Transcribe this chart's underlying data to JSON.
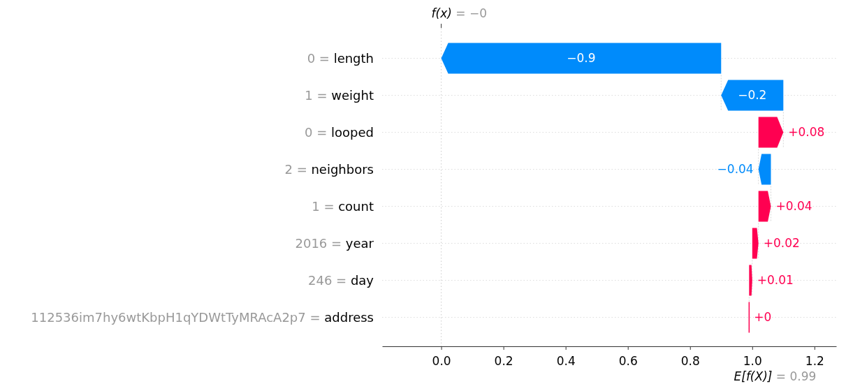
{
  "chart_data": {
    "type": "bar",
    "orientation": "horizontal",
    "categories": [
      "0 = length",
      "1 = weight",
      "0 = looped",
      "2 = neighbors",
      "1 = count",
      "2016 = year",
      "246 = day",
      "112536im7hy6wtKbpH1qYDWtTyMRAcA2p7 = address"
    ],
    "values": [
      -0.9,
      -0.2,
      0.08,
      -0.04,
      0.04,
      0.02,
      0.01,
      0
    ],
    "base": [
      0.9,
      1.1,
      1.02,
      1.06,
      1.02,
      1.0,
      0.99,
      0.99
    ],
    "colors": [
      "#008bfb",
      "#008bfb",
      "#ff0051",
      "#008bfb",
      "#ff0051",
      "#ff0051",
      "#ff0051",
      "#ff0051"
    ],
    "value_labels": [
      "−0.9",
      "−0.2",
      "+0.08",
      "−0.04",
      "+0.04",
      "+0.02",
      "+0.01",
      "+0"
    ],
    "xlim": [
      -0.19,
      1.27
    ],
    "xticks": [
      {
        "value": 0,
        "label": "0.0"
      },
      0.2,
      0.4,
      0.6,
      0.8,
      {
        "value": 1,
        "label": "1.0"
      },
      1.2
    ],
    "grid": "y",
    "ref_lines": [
      {
        "axis": "x",
        "value": 0,
        "line_style": "dotted",
        "color": "#cccccc"
      }
    ],
    "annotations": [
      "f(x) = −0",
      "E[f(X)] = 0.99"
    ]
  }
}
